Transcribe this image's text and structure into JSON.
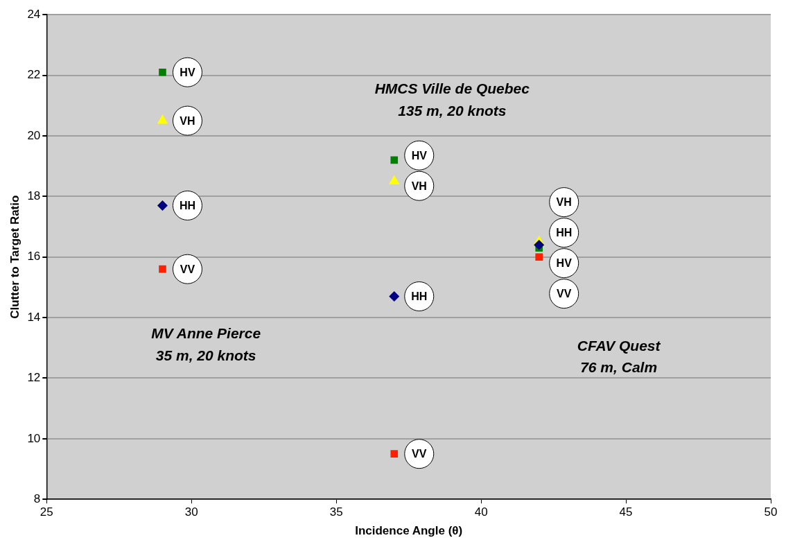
{
  "chart_data": {
    "type": "scatter",
    "xlabel": "Incidence Angle (θ)",
    "ylabel": "Clutter to Target Ratio",
    "xlim": [
      25,
      50
    ],
    "xticks": [
      25,
      30,
      35,
      40,
      45,
      50
    ],
    "ylim": [
      8,
      24
    ],
    "yticks": [
      8,
      10,
      12,
      14,
      16,
      18,
      20,
      22,
      24
    ],
    "grid": "y",
    "legend": false,
    "series": [
      {
        "color": "#000080",
        "marker": "diamond",
        "x": [
          29,
          37,
          42
        ],
        "values": [
          17.7,
          14.7,
          16.4
        ],
        "value_labels": [
          "HH",
          "HH",
          "HH"
        ]
      },
      {
        "color": "#008000",
        "marker": "square",
        "x": [
          29,
          37,
          42
        ],
        "values": [
          22.1,
          19.2,
          16.3
        ],
        "value_labels": [
          "HV",
          "HV",
          "HV"
        ]
      },
      {
        "color": "#ffff00",
        "marker": "triangle",
        "x": [
          29,
          37,
          42
        ],
        "values": [
          20.5,
          18.5,
          16.5
        ],
        "value_labels": [
          "VH",
          "VH",
          "VH"
        ]
      },
      {
        "color": "#ff2000",
        "marker": "square",
        "x": [
          29,
          37,
          42
        ],
        "values": [
          15.6,
          9.5,
          16.0
        ],
        "value_labels": [
          "VV",
          "VV",
          "VV"
        ]
      }
    ],
    "annotations": [
      "MV Anne Pierce",
      "35 m, 20 knots",
      "HMCS Ville de Quebec",
      "135 m, 20 knots",
      "CFAV Quest",
      "76 m, Calm"
    ]
  }
}
